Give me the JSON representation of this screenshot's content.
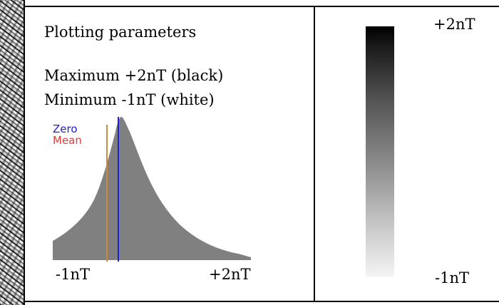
{
  "panel": {
    "title": "Plotting parameters",
    "maximum_line": "Maximum +2nT (black)",
    "minimum_line": "Minimum -1nT (white)"
  },
  "histogram": {
    "legend_zero": "Zero",
    "legend_mean": "Mean",
    "x_min_label": "-1nT",
    "x_max_label": "+2nT",
    "range": [
      -1,
      2
    ],
    "zero_value": 0,
    "mean_value": -0.1,
    "fill_color": "#808080",
    "zero_color": "#1f1fd1",
    "mean_color": "#c98a40"
  },
  "scale": {
    "top_label": "+2nT",
    "bottom_label": "-1nT",
    "top_color": "#000000",
    "bottom_color": "#f4f4f4"
  }
}
